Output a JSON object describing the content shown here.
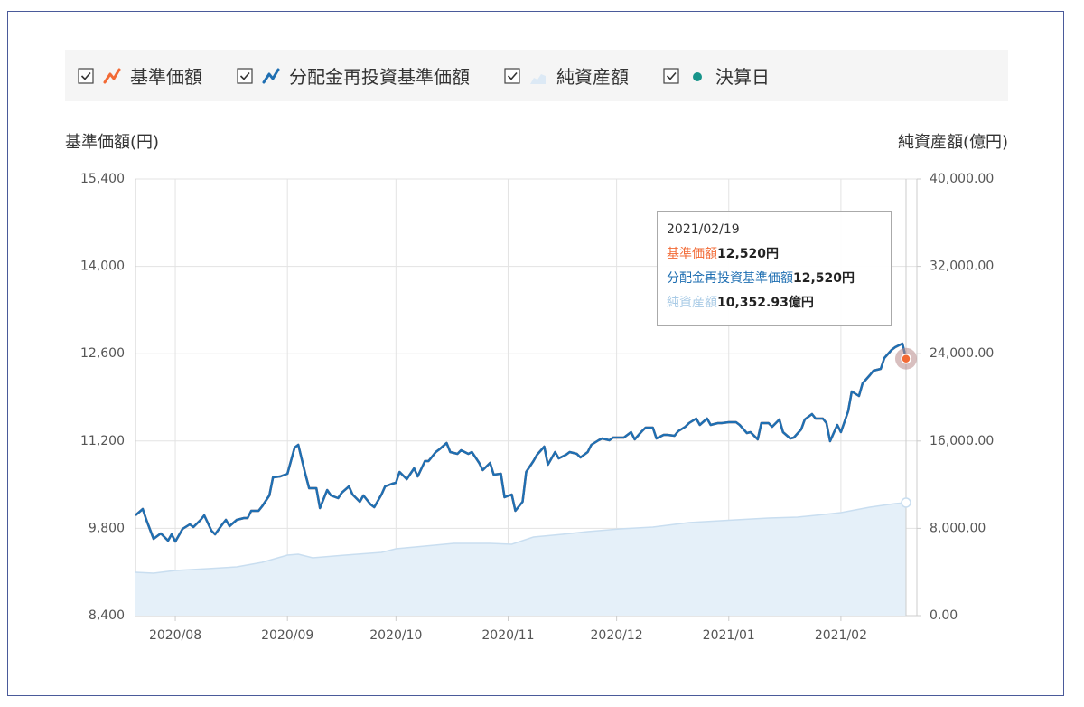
{
  "chart_data": {
    "type": "line",
    "y_label": "基準価額(円)",
    "y2_label": "純資産額(億円)",
    "xlim": [
      "2020/07/21",
      "2021/02/22"
    ],
    "xticks": [
      "2020/08",
      "2020/09",
      "2020/10",
      "2020/11",
      "2020/12",
      "2021/01",
      "2021/02"
    ],
    "ylim": [
      8400,
      15400
    ],
    "yticks": [
      {
        "value": 8400,
        "label": "8,400"
      },
      {
        "value": 9800,
        "label": "9,800"
      },
      {
        "value": 11200,
        "label": "11,200"
      },
      {
        "value": 12600,
        "label": "12,600"
      },
      {
        "value": 14000,
        "label": "14,000"
      },
      {
        "value": 15400,
        "label": "15,400"
      }
    ],
    "y2lim": [
      0,
      40000
    ],
    "y2ticks": [
      {
        "value": 0,
        "label": "0.00"
      },
      {
        "value": 8000,
        "label": "8,000.00"
      },
      {
        "value": 16000,
        "label": "16,000.00"
      },
      {
        "value": 24000,
        "label": "24,000.00"
      },
      {
        "value": 32000,
        "label": "32,000.00"
      },
      {
        "value": 40000,
        "label": "40,000.00"
      }
    ],
    "grid": true,
    "series": [
      {
        "name": "基準価額",
        "type": "line",
        "color": "#f26a35",
        "x": [
          "2020/07/21",
          "2020/07/23",
          "2020/07/24",
          "2020/07/26",
          "2020/07/28",
          "2020/07/30",
          "2020/07/31",
          "2020/08/01",
          "2020/08/03",
          "2020/08/05",
          "2020/08/06",
          "2020/08/08",
          "2020/08/09",
          "2020/08/11",
          "2020/08/12",
          "2020/08/14",
          "2020/08/15",
          "2020/08/16",
          "2020/08/18",
          "2020/08/20",
          "2020/08/21",
          "2020/08/22",
          "2020/08/24",
          "2020/08/25",
          "2020/08/27",
          "2020/08/28",
          "2020/08/30",
          "2020/09/01",
          "2020/09/03",
          "2020/09/04",
          "2020/09/06",
          "2020/09/07",
          "2020/09/09",
          "2020/09/10",
          "2020/09/12",
          "2020/09/13",
          "2020/09/15",
          "2020/09/16",
          "2020/09/18",
          "2020/09/19",
          "2020/09/21",
          "2020/09/22",
          "2020/09/24",
          "2020/09/25",
          "2020/09/27",
          "2020/09/28",
          "2020/09/30",
          "2020/10/01",
          "2020/10/02",
          "2020/10/04",
          "2020/10/06",
          "2020/10/07",
          "2020/10/09",
          "2020/10/10",
          "2020/10/12",
          "2020/10/13",
          "2020/10/15",
          "2020/10/16",
          "2020/10/18",
          "2020/10/19",
          "2020/10/21",
          "2020/10/22",
          "2020/10/24",
          "2020/10/25",
          "2020/10/27",
          "2020/10/28",
          "2020/10/30",
          "2020/10/31",
          "2020/11/02",
          "2020/11/03",
          "2020/11/05",
          "2020/11/06",
          "2020/11/08",
          "2020/11/09",
          "2020/11/11",
          "2020/11/12",
          "2020/11/14",
          "2020/11/15",
          "2020/11/17",
          "2020/11/18",
          "2020/11/20",
          "2020/11/21",
          "2020/11/23",
          "2020/11/24",
          "2020/11/26",
          "2020/11/27",
          "2020/11/29",
          "2020/11/30",
          "2020/12/02",
          "2020/12/03",
          "2020/12/05",
          "2020/12/06",
          "2020/12/08",
          "2020/12/09",
          "2020/12/11",
          "2020/12/12",
          "2020/12/14",
          "2020/12/15",
          "2020/12/17",
          "2020/12/18",
          "2020/12/20",
          "2020/12/21",
          "2020/12/23",
          "2020/12/24",
          "2020/12/26",
          "2020/12/27",
          "2020/12/29",
          "2020/12/30",
          "2021/01/01",
          "2021/01/03",
          "2021/01/04",
          "2021/01/06",
          "2021/01/07",
          "2021/01/09",
          "2021/01/10",
          "2021/01/12",
          "2021/01/13",
          "2021/01/15",
          "2021/01/16",
          "2021/01/18",
          "2021/01/19",
          "2021/01/21",
          "2021/01/22",
          "2021/01/24",
          "2021/01/25",
          "2021/01/27",
          "2021/01/28",
          "2021/01/29",
          "2021/01/31",
          "2021/02/01",
          "2021/02/03",
          "2021/02/04",
          "2021/02/06",
          "2021/02/07",
          "2021/02/09",
          "2021/02/10",
          "2021/02/12",
          "2021/02/13",
          "2021/02/15",
          "2021/02/16",
          "2021/02/18",
          "2021/02/19"
        ],
        "values": [
          10010,
          10110,
          9936,
          9632,
          9719,
          9603,
          9704,
          9588,
          9791,
          9864,
          9820,
          9936,
          10009,
          9762,
          9704,
          9864,
          9936,
          9835,
          9936,
          9965,
          9965,
          10081,
          10081,
          10154,
          10328,
          10617,
          10632,
          10675,
          11096,
          11139,
          10661,
          10443,
          10443,
          10125,
          10414,
          10328,
          10284,
          10371,
          10472,
          10342,
          10226,
          10328,
          10183,
          10139,
          10342,
          10472,
          10516,
          10530,
          10704,
          10588,
          10762,
          10632,
          10878,
          10878,
          11023,
          11067,
          11168,
          11023,
          10994,
          11052,
          10994,
          11023,
          10849,
          10733,
          10849,
          10661,
          10675,
          10299,
          10342,
          10081,
          10226,
          10704,
          10878,
          10980,
          11110,
          10820,
          11023,
          10922,
          10980,
          11023,
          10994,
          10936,
          11023,
          11139,
          11212,
          11241,
          11212,
          11255,
          11255,
          11255,
          11342,
          11226,
          11357,
          11414,
          11414,
          11241,
          11299,
          11299,
          11284,
          11357,
          11429,
          11487,
          11559,
          11458,
          11559,
          11458,
          11487,
          11487,
          11501,
          11501,
          11458,
          11328,
          11342,
          11226,
          11487,
          11487,
          11429,
          11545,
          11342,
          11241,
          11255,
          11386,
          11545,
          11632,
          11559,
          11559,
          11487,
          11197,
          11458,
          11342,
          11675,
          11994,
          11922,
          12125,
          12255,
          12328,
          12357,
          12530,
          12661,
          12704,
          12762,
          12520
        ]
      },
      {
        "name": "分配金再投資基準価額",
        "type": "line",
        "color": "#1f6fb2",
        "x": [
          "2020/07/21",
          "2020/07/23",
          "2020/07/24",
          "2020/07/26",
          "2020/07/28",
          "2020/07/30",
          "2020/07/31",
          "2020/08/01",
          "2020/08/03",
          "2020/08/05",
          "2020/08/06",
          "2020/08/08",
          "2020/08/09",
          "2020/08/11",
          "2020/08/12",
          "2020/08/14",
          "2020/08/15",
          "2020/08/16",
          "2020/08/18",
          "2020/08/20",
          "2020/08/21",
          "2020/08/22",
          "2020/08/24",
          "2020/08/25",
          "2020/08/27",
          "2020/08/28",
          "2020/08/30",
          "2020/09/01",
          "2020/09/03",
          "2020/09/04",
          "2020/09/06",
          "2020/09/07",
          "2020/09/09",
          "2020/09/10",
          "2020/09/12",
          "2020/09/13",
          "2020/09/15",
          "2020/09/16",
          "2020/09/18",
          "2020/09/19",
          "2020/09/21",
          "2020/09/22",
          "2020/09/24",
          "2020/09/25",
          "2020/09/27",
          "2020/09/28",
          "2020/09/30",
          "2020/10/01",
          "2020/10/02",
          "2020/10/04",
          "2020/10/06",
          "2020/10/07",
          "2020/10/09",
          "2020/10/10",
          "2020/10/12",
          "2020/10/13",
          "2020/10/15",
          "2020/10/16",
          "2020/10/18",
          "2020/10/19",
          "2020/10/21",
          "2020/10/22",
          "2020/10/24",
          "2020/10/25",
          "2020/10/27",
          "2020/10/28",
          "2020/10/30",
          "2020/10/31",
          "2020/11/02",
          "2020/11/03",
          "2020/11/05",
          "2020/11/06",
          "2020/11/08",
          "2020/11/09",
          "2020/11/11",
          "2020/11/12",
          "2020/11/14",
          "2020/11/15",
          "2020/11/17",
          "2020/11/18",
          "2020/11/20",
          "2020/11/21",
          "2020/11/23",
          "2020/11/24",
          "2020/11/26",
          "2020/11/27",
          "2020/11/29",
          "2020/11/30",
          "2020/12/02",
          "2020/12/03",
          "2020/12/05",
          "2020/12/06",
          "2020/12/08",
          "2020/12/09",
          "2020/12/11",
          "2020/12/12",
          "2020/12/14",
          "2020/12/15",
          "2020/12/17",
          "2020/12/18",
          "2020/12/20",
          "2020/12/21",
          "2020/12/23",
          "2020/12/24",
          "2020/12/26",
          "2020/12/27",
          "2020/12/29",
          "2020/12/30",
          "2021/01/01",
          "2021/01/03",
          "2021/01/04",
          "2021/01/06",
          "2021/01/07",
          "2021/01/09",
          "2021/01/10",
          "2021/01/12",
          "2021/01/13",
          "2021/01/15",
          "2021/01/16",
          "2021/01/18",
          "2021/01/19",
          "2021/01/21",
          "2021/01/22",
          "2021/01/24",
          "2021/01/25",
          "2021/01/27",
          "2021/01/28",
          "2021/01/29",
          "2021/01/31",
          "2021/02/01",
          "2021/02/03",
          "2021/02/04",
          "2021/02/06",
          "2021/02/07",
          "2021/02/09",
          "2021/02/10",
          "2021/02/12",
          "2021/02/13",
          "2021/02/15",
          "2021/02/16",
          "2021/02/18",
          "2021/02/19"
        ],
        "values": [
          10010,
          10110,
          9936,
          9632,
          9719,
          9603,
          9704,
          9588,
          9791,
          9864,
          9820,
          9936,
          10009,
          9762,
          9704,
          9864,
          9936,
          9835,
          9936,
          9965,
          9965,
          10081,
          10081,
          10154,
          10328,
          10617,
          10632,
          10675,
          11096,
          11139,
          10661,
          10443,
          10443,
          10125,
          10414,
          10328,
          10284,
          10371,
          10472,
          10342,
          10226,
          10328,
          10183,
          10139,
          10342,
          10472,
          10516,
          10530,
          10704,
          10588,
          10762,
          10632,
          10878,
          10878,
          11023,
          11067,
          11168,
          11023,
          10994,
          11052,
          10994,
          11023,
          10849,
          10733,
          10849,
          10661,
          10675,
          10299,
          10342,
          10081,
          10226,
          10704,
          10878,
          10980,
          11110,
          10820,
          11023,
          10922,
          10980,
          11023,
          10994,
          10936,
          11023,
          11139,
          11212,
          11241,
          11212,
          11255,
          11255,
          11255,
          11342,
          11226,
          11357,
          11414,
          11414,
          11241,
          11299,
          11299,
          11284,
          11357,
          11429,
          11487,
          11559,
          11458,
          11559,
          11458,
          11487,
          11487,
          11501,
          11501,
          11458,
          11328,
          11342,
          11226,
          11487,
          11487,
          11429,
          11545,
          11342,
          11241,
          11255,
          11386,
          11545,
          11632,
          11559,
          11559,
          11487,
          11197,
          11458,
          11342,
          11675,
          11994,
          11922,
          12125,
          12255,
          12328,
          12357,
          12530,
          12661,
          12704,
          12762,
          12520
        ]
      },
      {
        "name": "純資産額",
        "type": "area",
        "axis": "y2",
        "color": "#e5f0f9",
        "line_color": "#c9def0",
        "x": [
          "2020/07/21",
          "2020/07/26",
          "2020/08/01",
          "2020/08/10",
          "2020/08/18",
          "2020/08/25",
          "2020/09/01",
          "2020/09/04",
          "2020/09/08",
          "2020/09/17",
          "2020/09/27",
          "2020/10/01",
          "2020/10/09",
          "2020/10/17",
          "2020/10/27",
          "2020/11/02",
          "2020/11/08",
          "2020/11/16",
          "2020/11/23",
          "2020/12/02",
          "2020/12/11",
          "2020/12/21",
          "2021/01/03",
          "2021/01/12",
          "2021/01/20",
          "2021/01/25",
          "2021/02/01",
          "2021/02/09",
          "2021/02/16",
          "2021/02/19"
        ],
        "values": [
          3975,
          3892,
          4141,
          4306,
          4472,
          4886,
          5549,
          5631,
          5300,
          5549,
          5797,
          6128,
          6377,
          6625,
          6625,
          6542,
          7205,
          7453,
          7702,
          7950,
          8116,
          8530,
          8778,
          8944,
          9027,
          9193,
          9441,
          9938,
          10269,
          10352.93
        ]
      },
      {
        "name": "決算日",
        "type": "marker",
        "color": "#17948a",
        "x": [],
        "values": []
      }
    ],
    "tooltip": {
      "value_labels": [
        "12,520円",
        "12,520円",
        "10,352.93億円"
      ]
    }
  }
}
